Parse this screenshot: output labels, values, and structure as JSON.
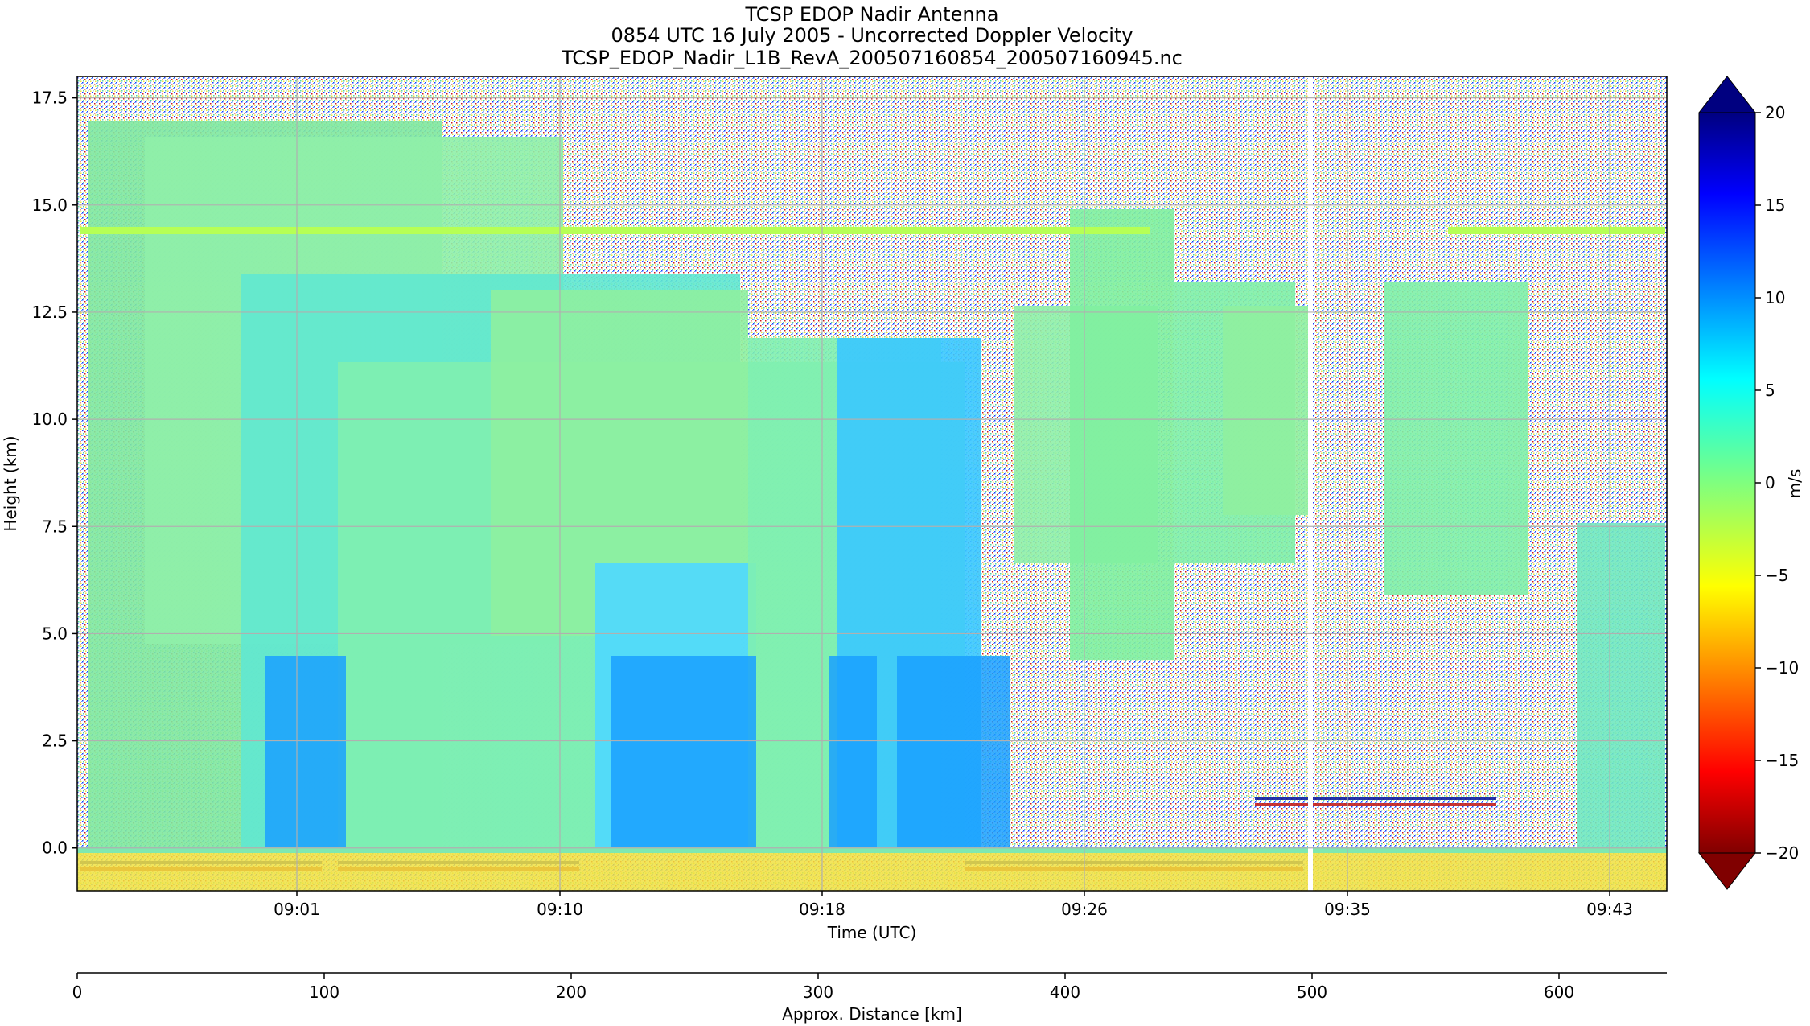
{
  "chart_data": {
    "type": "heatmap",
    "title_lines": [
      "TCSP EDOP Nadir Antenna",
      "0854 UTC 16 July 2005 - Uncorrected Doppler Velocity",
      "TCSP_EDOP_Nadir_L1B_RevA_200507160854_200507160945.nc"
    ],
    "xlabel": "Time (UTC)",
    "ylabel": "Height (km)",
    "x_ticks": [
      "09:01",
      "09:10",
      "09:18",
      "09:26",
      "09:35",
      "09:43"
    ],
    "y_ticks": [
      "0.0",
      "2.5",
      "5.0",
      "7.5",
      "10.0",
      "12.5",
      "15.0",
      "17.5"
    ],
    "ylim": [
      -1.0,
      18.0
    ],
    "grid": true,
    "colorbar": {
      "label": "m/s",
      "range": [
        -20,
        20
      ],
      "ticks": [
        "20",
        "15",
        "10",
        "5",
        "0",
        "−5",
        "−10",
        "−15",
        "−20"
      ],
      "colormap": "jet",
      "extend": "both"
    },
    "secondary_xaxis": {
      "label": "Approx. Distance [km]",
      "ticks": [
        "0",
        "100",
        "200",
        "300",
        "400",
        "500",
        "600"
      ]
    }
  }
}
